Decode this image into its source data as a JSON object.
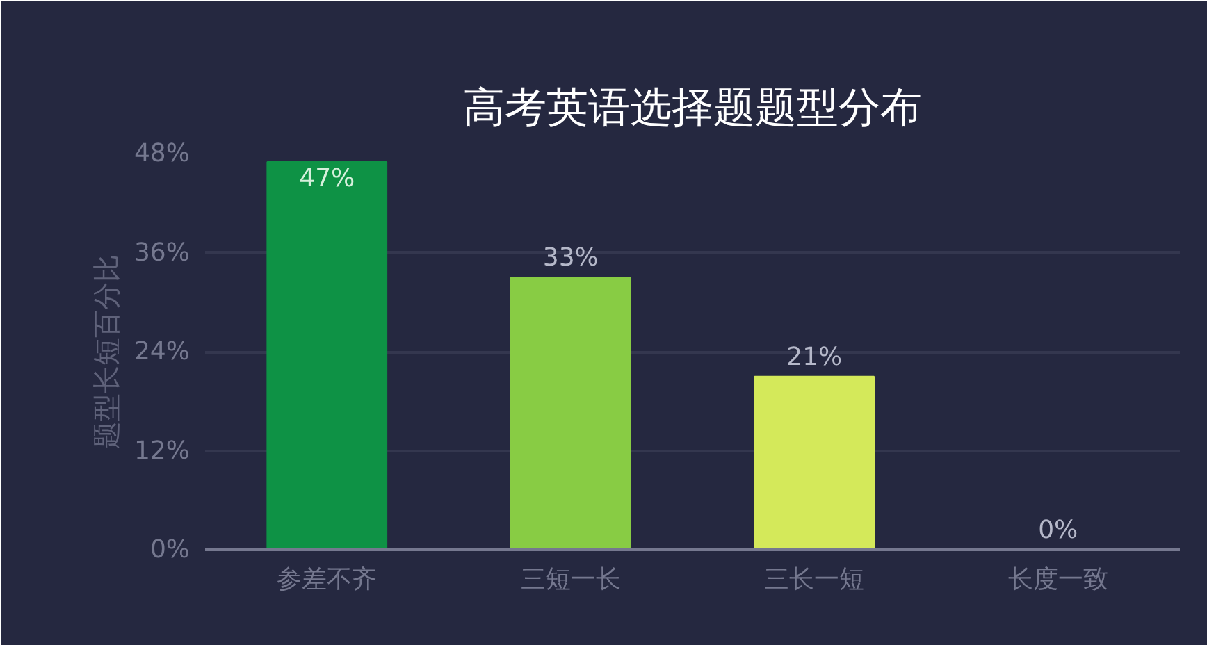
{
  "chart_data": {
    "type": "bar",
    "title": "高考英语选择题题型分布",
    "ylabel": "题型长短百分比",
    "categories": [
      "参差不齐",
      "三短一长",
      "三长一短",
      "长度一致"
    ],
    "values": [
      47,
      33,
      21,
      0
    ],
    "colors": [
      "#0e9245",
      "#88cc44",
      "#d4e95a",
      "#d4e95a"
    ],
    "value_labels": [
      "47%",
      "33%",
      "21%",
      "0%"
    ],
    "ylim": [
      0,
      48
    ],
    "yticks": [
      {
        "value": 0,
        "label": "0%"
      },
      {
        "value": 12,
        "label": "12%"
      },
      {
        "value": 24,
        "label": "24%"
      },
      {
        "value": 36,
        "label": "36%"
      },
      {
        "value": 48,
        "label": "48%"
      }
    ],
    "grid": "y"
  }
}
